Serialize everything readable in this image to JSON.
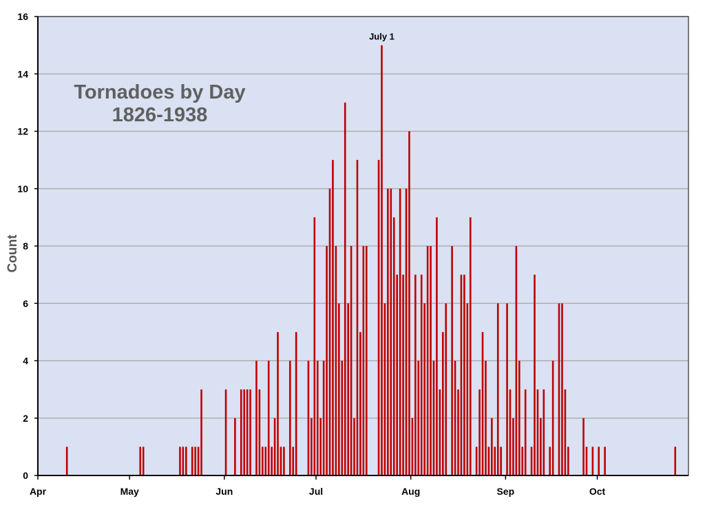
{
  "chart_data": {
    "type": "bar",
    "title": [
      "Tornadoes by Day",
      "1826-1938"
    ],
    "xlabel": "",
    "ylabel": "Count",
    "ylim": [
      0,
      16
    ],
    "yticks": [
      0,
      2,
      4,
      6,
      8,
      10,
      12,
      14,
      16
    ],
    "x_axis_ticks": [
      "Apr",
      "May",
      "Jun",
      "Jul",
      "Aug",
      "Sep",
      "Oct"
    ],
    "grid": true,
    "annotation": "July 1",
    "colors": {
      "plot_background": "#d9e1f2",
      "bar": "#c00000",
      "grid": "#a6a6a6",
      "axis": "#000000"
    },
    "values": [
      0,
      0,
      0,
      0,
      0,
      0,
      0,
      0,
      0,
      1,
      0,
      0,
      0,
      0,
      0,
      0,
      0,
      0,
      0,
      0,
      0,
      0,
      0,
      0,
      0,
      0,
      0,
      0,
      0,
      0,
      0,
      0,
      0,
      1,
      1,
      0,
      0,
      0,
      0,
      0,
      0,
      0,
      0,
      0,
      0,
      0,
      1,
      1,
      1,
      0,
      1,
      1,
      1,
      3,
      0,
      0,
      0,
      0,
      0,
      0,
      0,
      3,
      0,
      0,
      2,
      0,
      3,
      3,
      3,
      3,
      0,
      4,
      3,
      1,
      1,
      4,
      1,
      2,
      5,
      1,
      1,
      0,
      4,
      1,
      5,
      0,
      0,
      0,
      4,
      2,
      9,
      4,
      2,
      4,
      8,
      10,
      11,
      8,
      6,
      4,
      13,
      6,
      8,
      2,
      11,
      5,
      8,
      8,
      0,
      0,
      0,
      11,
      15,
      6,
      10,
      10,
      9,
      7,
      10,
      7,
      10,
      12,
      2,
      7,
      4,
      7,
      6,
      8,
      8,
      4,
      9,
      3,
      5,
      6,
      0,
      8,
      4,
      3,
      7,
      7,
      6,
      9,
      0,
      1,
      3,
      5,
      4,
      1,
      2,
      1,
      6,
      1,
      0,
      6,
      3,
      2,
      8,
      4,
      1,
      3,
      0,
      1,
      7,
      3,
      2,
      3,
      0,
      1,
      4,
      0,
      6,
      6,
      3,
      1,
      0,
      0,
      0,
      0,
      2,
      1,
      0,
      1,
      0,
      1,
      0,
      1,
      0,
      0,
      0,
      0,
      0,
      0,
      0,
      0,
      0,
      0,
      0,
      0,
      0,
      0,
      0,
      0,
      0,
      0,
      0,
      0,
      0,
      0,
      1,
      0,
      0,
      0,
      0,
      0,
      0,
      0,
      0,
      0,
      0,
      0,
      0,
      0,
      0,
      0,
      0,
      0,
      0,
      0,
      0,
      0,
      0,
      0,
      0,
      0,
      0
    ]
  }
}
